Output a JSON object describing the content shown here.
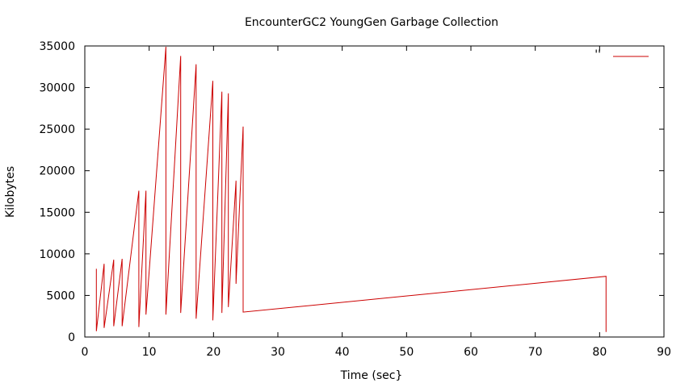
{
  "chart_data": {
    "type": "line",
    "title": "EncounterGC2 YoungGen Garbage Collection",
    "xlabel": "Time (sec}",
    "ylabel": "Kilobytes",
    "xlim": [
      0,
      90
    ],
    "ylim": [
      0,
      35000
    ],
    "xticks": [
      0,
      10,
      20,
      30,
      40,
      50,
      60,
      70,
      80,
      90
    ],
    "yticks": [
      0,
      5000,
      10000,
      15000,
      20000,
      25000,
      30000,
      35000
    ],
    "grid": false,
    "legend": {
      "placement": "top-right",
      "label": "''"
    },
    "series": [
      {
        "color": "#cc0000",
        "x": [
          1.8,
          1.8,
          3.0,
          3.0,
          4.5,
          4.5,
          5.8,
          5.8,
          8.4,
          8.4,
          9.5,
          9.5,
          12.6,
          12.6,
          14.9,
          14.9,
          17.3,
          17.3,
          19.9,
          19.9,
          21.3,
          21.3,
          22.3,
          22.3,
          23.5,
          23.5,
          24.6,
          24.6,
          81.0,
          81.0
        ],
        "y": [
          8200,
          700,
          8800,
          1100,
          9300,
          1300,
          9400,
          1300,
          17600,
          1200,
          17600,
          2700,
          34900,
          2700,
          33800,
          2900,
          32800,
          2200,
          30800,
          2000,
          29500,
          2900,
          29300,
          3600,
          18800,
          6400,
          25300,
          3000,
          7300,
          600
        ]
      }
    ]
  }
}
